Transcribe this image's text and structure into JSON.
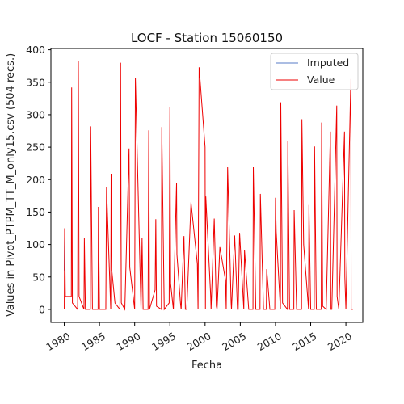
{
  "chart_data": {
    "type": "line",
    "title": "LOCF - Station 15060150",
    "xlabel": "Fecha",
    "ylabel": "Values in Pivot_PTPM_TT_M_only15.csv (504 recs.)",
    "xlim": [
      1978.1,
      2022.4
    ],
    "ylim": [
      -20,
      402
    ],
    "xticks": [
      1980,
      1985,
      1990,
      1995,
      2000,
      2005,
      2010,
      2015,
      2020
    ],
    "xtick_labels": [
      "1980",
      "1985",
      "1990",
      "1995",
      "2000",
      "2005",
      "2010",
      "2015",
      "2020"
    ],
    "yticks": [
      0,
      50,
      100,
      150,
      200,
      250,
      300,
      350,
      400
    ],
    "ytick_labels": [
      "0",
      "50",
      "100",
      "150",
      "200",
      "250",
      "300",
      "350",
      "400"
    ],
    "grid": false,
    "legend_position": "top-right",
    "series": [
      {
        "name": "Imputed",
        "color": "#1f4fb4",
        "line_width": 0.8,
        "x": [
          1980.0,
          1980.05,
          1980.1
        ],
        "y": [
          60,
          125,
          60
        ]
      },
      {
        "name": "Value",
        "color": "#ee0000",
        "line_width": 1.0,
        "x": [
          1980.0,
          1980.05,
          1980.15,
          1981.0,
          1981.05,
          1981.15,
          1981.9,
          1982.0,
          1982.1,
          1982.8,
          1982.85,
          1983.0,
          1983.7,
          1983.75,
          1984.0,
          1984.8,
          1984.85,
          1985.0,
          1985.9,
          1986.0,
          1986.6,
          1986.65,
          1986.75,
          1987.2,
          1987.9,
          1988.0,
          1988.1,
          1988.6,
          1989.2,
          1989.3,
          1990.0,
          1990.1,
          1990.9,
          1991.05,
          1991.2,
          1991.9,
          1992.0,
          1992.1,
          1992.9,
          1993.0,
          1993.1,
          1993.8,
          1993.85,
          1994.2,
          1994.9,
          1995.0,
          1995.1,
          1995.5,
          1995.95,
          1996.0,
          1996.5,
          1996.6,
          1997.0,
          1997.2,
          1997.4,
          1998.0,
          1998.9,
          1999.0,
          1999.15,
          2000.0,
          2000.05,
          2000.1,
          2000.8,
          2000.85,
          2001.3,
          2001.6,
          2001.7,
          2002.1,
          2002.9,
          2003.0,
          2003.2,
          2003.7,
          2003.75,
          2004.2,
          2004.6,
          2004.7,
          2004.9,
          2005.5,
          2005.6,
          2006.2,
          2006.8,
          2006.85,
          2007.2,
          2007.8,
          2007.85,
          2008.3,
          2008.7,
          2008.75,
          2009.2,
          2009.9,
          2010.0,
          2010.1,
          2010.7,
          2010.75,
          2011.0,
          2011.7,
          2011.75,
          2012.0,
          2012.6,
          2012.65,
          2013.0,
          2013.7,
          2013.75,
          2014.0,
          2014.7,
          2014.75,
          2015.0,
          2015.5,
          2015.55,
          2015.8,
          2016.5,
          2016.55,
          2016.7,
          2017.2,
          2017.8,
          2017.85,
          2018.0,
          2018.7,
          2018.75,
          2019.0,
          2019.8,
          2019.85,
          2020.0,
          2020.7,
          2020.75,
          2021.0
        ],
        "y": [
          0,
          125,
          20,
          20,
          342,
          10,
          0,
          383,
          20,
          0,
          110,
          0,
          0,
          282,
          0,
          0,
          158,
          0,
          0,
          188,
          0,
          209,
          60,
          10,
          0,
          380,
          10,
          0,
          248,
          65,
          0,
          357,
          0,
          110,
          0,
          0,
          276,
          0,
          30,
          139,
          5,
          0,
          281,
          0,
          10,
          312,
          40,
          0,
          195,
          85,
          10,
          0,
          113,
          0,
          0,
          165,
          70,
          0,
          373,
          250,
          0,
          174,
          20,
          0,
          140,
          5,
          0,
          96,
          45,
          0,
          219,
          10,
          0,
          114,
          0,
          0,
          118,
          0,
          91,
          0,
          0,
          219,
          0,
          0,
          178,
          0,
          0,
          62,
          0,
          0,
          172,
          120,
          0,
          319,
          10,
          0,
          260,
          0,
          0,
          153,
          0,
          0,
          293,
          100,
          0,
          161,
          0,
          0,
          251,
          0,
          0,
          288,
          5,
          0,
          274,
          0,
          0,
          314,
          20,
          0,
          274,
          50,
          0,
          355,
          0,
          0
        ]
      }
    ]
  }
}
